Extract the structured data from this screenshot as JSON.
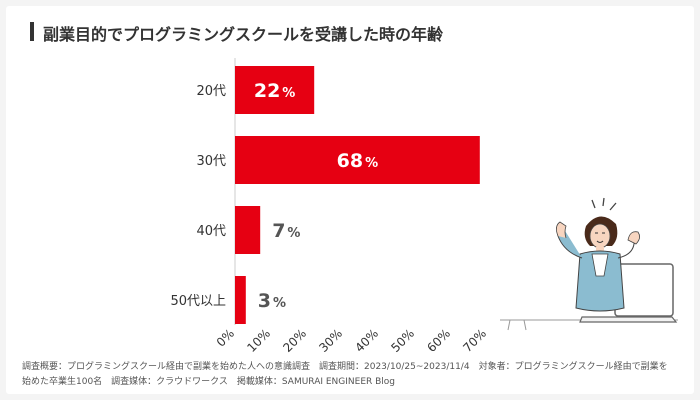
{
  "title": "副業目的でプログラミングスクールを受講した時の年齢",
  "footnote": {
    "line1": "調査概要：プログラミングスクール経由で副業を始めた人への意識調査　調査期間：2023/10/25~2023/11/4　対象者：プログラミングスクール経由で副業を",
    "line2": "始めた卒業生100名　調査媒体：クラウドワークス　掲載媒体：SAMURAI ENGINEER Blog"
  },
  "colors": {
    "bar": "#e60012",
    "label_inside": "#ffffff",
    "label_outside": "#555555",
    "axis": "#cccccc",
    "text": "#333333"
  },
  "chart_data": {
    "type": "bar",
    "orientation": "horizontal",
    "categories": [
      "20代",
      "30代",
      "40代",
      "50代以上"
    ],
    "values": [
      22,
      68,
      7,
      3
    ],
    "value_suffix": "%",
    "xlim": [
      0,
      70
    ],
    "xticks": [
      "0%",
      "10%",
      "20%",
      "30%",
      "40%",
      "50%",
      "60%",
      "70%"
    ],
    "grid": false
  }
}
